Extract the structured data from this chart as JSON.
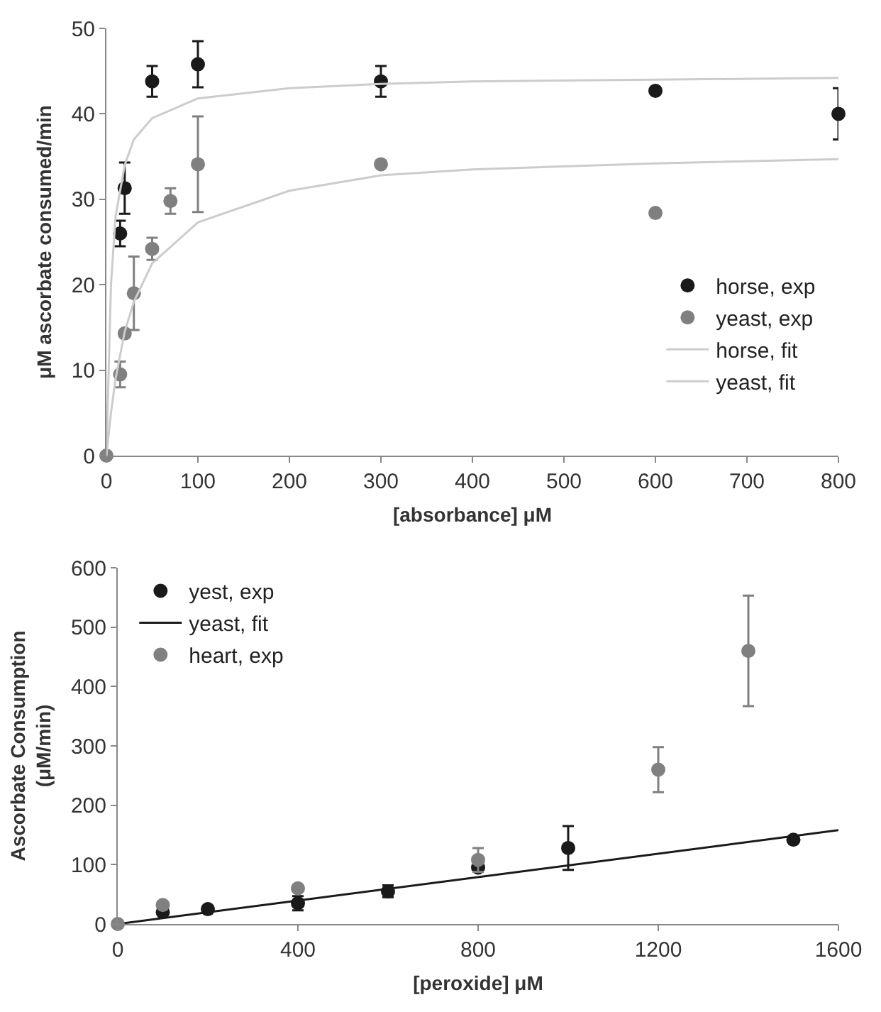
{
  "chart_data": [
    {
      "type": "scatter",
      "xlabel": "[absorbance] μM",
      "ylabel": "μM ascorbate consumed/min",
      "xlim": [
        0,
        800
      ],
      "ylim": [
        0,
        50
      ],
      "xticks": [
        0,
        100,
        200,
        300,
        400,
        500,
        600,
        700,
        800
      ],
      "yticks": [
        0,
        10,
        20,
        30,
        40,
        50
      ],
      "grid": false,
      "legend": "bottom right",
      "marker": "circle",
      "series": [
        {
          "name": "horse, exp",
          "color": "#1a1a1a",
          "x": [
            15,
            20,
            50,
            100,
            300,
            600,
            800
          ],
          "values": [
            26,
            31.3,
            43.8,
            45.8,
            43.8,
            42.7,
            40
          ],
          "errors": [
            1.5,
            3,
            1.8,
            2.7,
            1.8,
            null,
            3
          ]
        },
        {
          "name": "yeast, exp",
          "color": "#808080",
          "x": [
            0,
            15,
            20,
            30,
            50,
            70,
            100,
            300,
            600
          ],
          "values": [
            0,
            9.5,
            14.3,
            19,
            24.2,
            29.8,
            34.1,
            34.1,
            28.4
          ],
          "errors": [
            null,
            1.5,
            null,
            4.3,
            1.3,
            1.5,
            5.6,
            null,
            null
          ]
        },
        {
          "name": "horse, fit",
          "type": "line",
          "color": "#cccccc",
          "marker": "none",
          "x": [
            0,
            5,
            10,
            20,
            30,
            50,
            100,
            200,
            300,
            400,
            600,
            800
          ],
          "values": [
            0,
            20,
            28,
            34,
            37,
            39.5,
            41.8,
            43,
            43.5,
            43.8,
            44,
            44.2
          ]
        },
        {
          "name": "yeast, fit",
          "type": "line",
          "color": "#cccccc",
          "marker": "none",
          "x": [
            0,
            5,
            10,
            20,
            30,
            50,
            100,
            200,
            300,
            400,
            600,
            800
          ],
          "values": [
            0,
            5,
            9,
            14.5,
            18,
            22.5,
            27.3,
            31,
            32.8,
            33.5,
            34.2,
            34.7
          ]
        }
      ]
    },
    {
      "type": "scatter",
      "xlabel": "[peroxide] μM",
      "ylabel": "Ascorbate Consumption\n(μM/min)",
      "xlim": [
        0,
        1600
      ],
      "ylim": [
        0,
        600
      ],
      "xticks": [
        0,
        400,
        800,
        1200,
        1600
      ],
      "yticks": [
        0,
        100,
        200,
        300,
        400,
        500,
        600
      ],
      "grid": false,
      "legend": "top left",
      "marker": "circle",
      "series": [
        {
          "name": "yest, exp",
          "color": "#1a1a1a",
          "x": [
            100,
            200,
            400,
            600,
            800,
            1000,
            1500
          ],
          "values": [
            20,
            25,
            35,
            55,
            95,
            128,
            142
          ],
          "errors": [
            null,
            null,
            12,
            10,
            null,
            37,
            null
          ]
        },
        {
          "name": "yeast, fit",
          "type": "line",
          "color": "#1a1a1a",
          "marker": "none",
          "x": [
            0,
            1600
          ],
          "values": [
            0,
            158
          ]
        },
        {
          "name": "heart, exp",
          "color": "#808080",
          "x": [
            0,
            100,
            400,
            800,
            1200,
            1400
          ],
          "values": [
            0,
            32,
            60,
            108,
            260,
            460
          ],
          "errors": [
            null,
            null,
            null,
            20,
            38,
            93
          ]
        }
      ]
    }
  ]
}
